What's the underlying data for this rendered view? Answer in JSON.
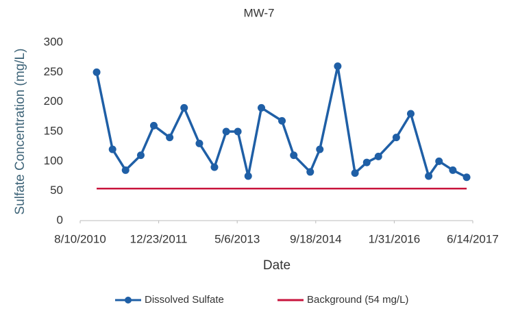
{
  "chart_data": {
    "type": "line",
    "title": "MW-7",
    "xlabel": "Date",
    "ylabel": "Sulfate Concentration (mg/L)",
    "x": [
      "2010-11-23",
      "2011-03-04",
      "2011-05-26",
      "2011-08-31",
      "2011-11-22",
      "2012-03-02",
      "2012-06-02",
      "2012-09-07",
      "2012-12-12",
      "2013-02-25",
      "2013-05-10",
      "2013-07-15",
      "2013-10-07",
      "2014-02-15",
      "2014-05-01",
      "2014-08-14",
      "2014-10-14",
      "2015-02-05",
      "2015-05-26",
      "2015-08-09",
      "2015-10-22",
      "2016-02-13",
      "2016-05-15",
      "2016-09-06",
      "2016-11-11",
      "2017-02-07",
      "2017-05-06"
    ],
    "series": [
      {
        "name": "Dissolved Sulfate",
        "color": "#1f5fa6",
        "values": [
          250,
          120,
          85,
          110,
          160,
          140,
          190,
          130,
          90,
          150,
          150,
          75,
          190,
          168,
          110,
          82,
          120,
          260,
          80,
          98,
          108,
          140,
          180,
          75,
          100,
          85,
          73
        ]
      },
      {
        "name": "Background (54 mg/L)",
        "color": "#c8143c",
        "x": [
          "2010-11-23",
          "2017-05-06"
        ],
        "values": [
          54,
          54
        ]
      }
    ],
    "xlim": [
      "2010-08-10",
      "2017-06-14"
    ],
    "xticks": [
      {
        "value": "2010-08-10",
        "label": "8/10/2010"
      },
      {
        "value": "2011-12-23",
        "label": "12/23/2011"
      },
      {
        "value": "2013-05-06",
        "label": "5/6/2013"
      },
      {
        "value": "2014-09-18",
        "label": "9/18/2014"
      },
      {
        "value": "2016-01-31",
        "label": "1/31/2016"
      },
      {
        "value": "2017-06-14",
        "label": "6/14/2017"
      }
    ],
    "ylim": [
      0,
      300
    ],
    "yticks": [
      0,
      50,
      100,
      150,
      200,
      250,
      300
    ],
    "grid": false
  }
}
